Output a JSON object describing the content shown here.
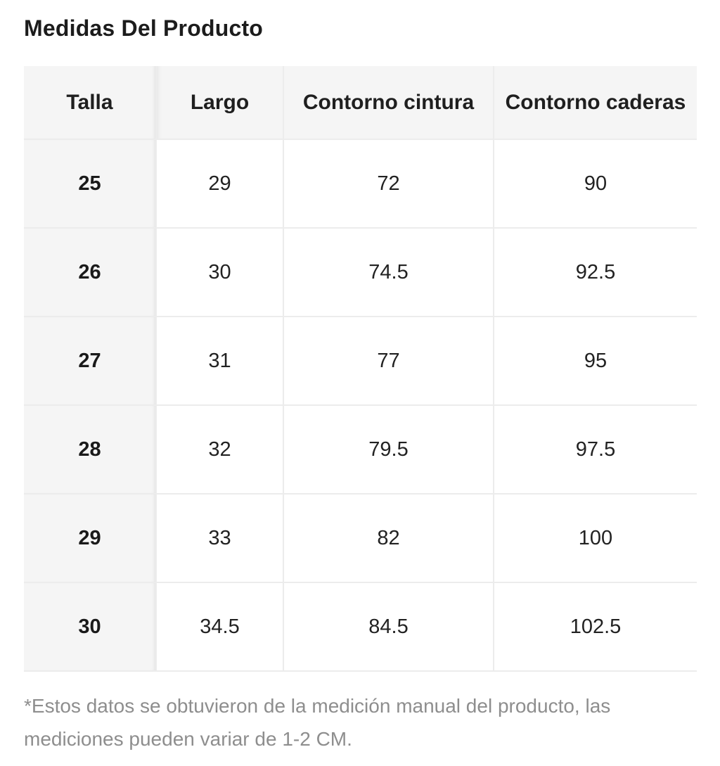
{
  "title": "Medidas Del Producto",
  "table": {
    "headers": [
      "Talla",
      "Largo",
      "Contorno cintura",
      "Contorno caderas"
    ],
    "rows": [
      [
        "25",
        "29",
        "72",
        "90"
      ],
      [
        "26",
        "30",
        "74.5",
        "92.5"
      ],
      [
        "27",
        "31",
        "77",
        "95"
      ],
      [
        "28",
        "32",
        "79.5",
        "97.5"
      ],
      [
        "29",
        "33",
        "82",
        "100"
      ],
      [
        "30",
        "34.5",
        "84.5",
        "102.5"
      ]
    ]
  },
  "note": "*Estos datos se obtuvieron de la medición manual del producto, las mediciones pueden variar de 1-2 CM."
}
